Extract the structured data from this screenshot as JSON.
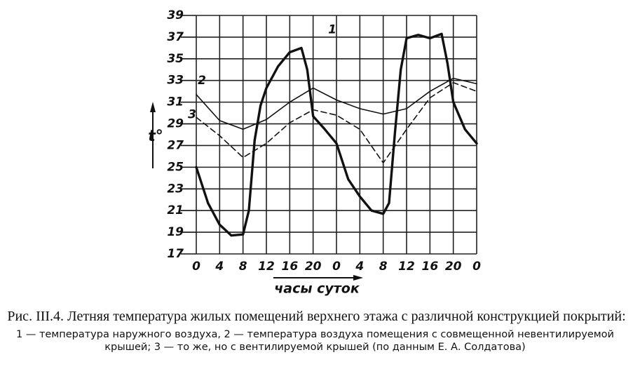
{
  "chart_data": {
    "type": "line",
    "title": "Рис. III.4. Летняя температура жилых помещений верхнего этажа с различной конструкцией покрытий:",
    "note": "1 — температура наружного воздуха, 2 — температура воздуха помещения с совмещенной невентилируемой крышей; 3 — то же, но с вентилируемой крышей (по данным Е. А. Солдатова)",
    "x_label": "часы суток",
    "y_label": "t°",
    "xlim": [
      0,
      48
    ],
    "ylim": [
      17,
      39
    ],
    "xticks": [
      0,
      4,
      8,
      12,
      16,
      20,
      {
        "value": 24,
        "label": "0"
      },
      {
        "value": 28,
        "label": "4"
      },
      {
        "value": 32,
        "label": "8"
      },
      {
        "value": 36,
        "label": "12"
      },
      {
        "value": 40,
        "label": "16"
      },
      {
        "value": 44,
        "label": "20"
      },
      {
        "value": 48,
        "label": "0"
      }
    ],
    "yticks": [
      17,
      19,
      21,
      23,
      25,
      27,
      29,
      31,
      33,
      35,
      37,
      39
    ],
    "grid": true,
    "series": [
      {
        "name": "1",
        "color": "#111",
        "style": "thick",
        "x": [
          0,
          2,
          4,
          6,
          8,
          9,
          10,
          11,
          12,
          14,
          16,
          18,
          19,
          20,
          22,
          24,
          26,
          28,
          30,
          32,
          33,
          34,
          35,
          36,
          38,
          40,
          42,
          43,
          44,
          46,
          48
        ],
        "values": [
          25,
          21.7,
          19.7,
          18.7,
          18.8,
          21,
          27.5,
          30.7,
          32.3,
          34.3,
          35.6,
          36,
          34,
          29.7,
          28.5,
          27.2,
          23.9,
          22.3,
          21,
          20.7,
          21.7,
          28.1,
          34,
          36.9,
          37.2,
          36.9,
          37.3,
          34.6,
          31,
          28.5,
          27.2
        ]
      },
      {
        "name": "2",
        "color": "#111",
        "style": "solid",
        "x": [
          0,
          4,
          8,
          12,
          16,
          20,
          24,
          28,
          32,
          36,
          40,
          44,
          48
        ],
        "values": [
          31.7,
          29.3,
          28.5,
          29.4,
          31,
          32.3,
          31.2,
          30.4,
          29.9,
          30.4,
          32,
          33.2,
          32.7
        ]
      },
      {
        "name": "3",
        "color": "#111",
        "style": "dashed",
        "x": [
          0,
          4,
          8,
          12,
          16,
          20,
          24,
          28,
          32,
          36,
          40,
          44,
          48
        ],
        "values": [
          29.6,
          27.9,
          25.9,
          27.2,
          29.1,
          30.3,
          29.8,
          28.5,
          25.4,
          28.5,
          31.4,
          32.8,
          32
        ]
      }
    ]
  }
}
